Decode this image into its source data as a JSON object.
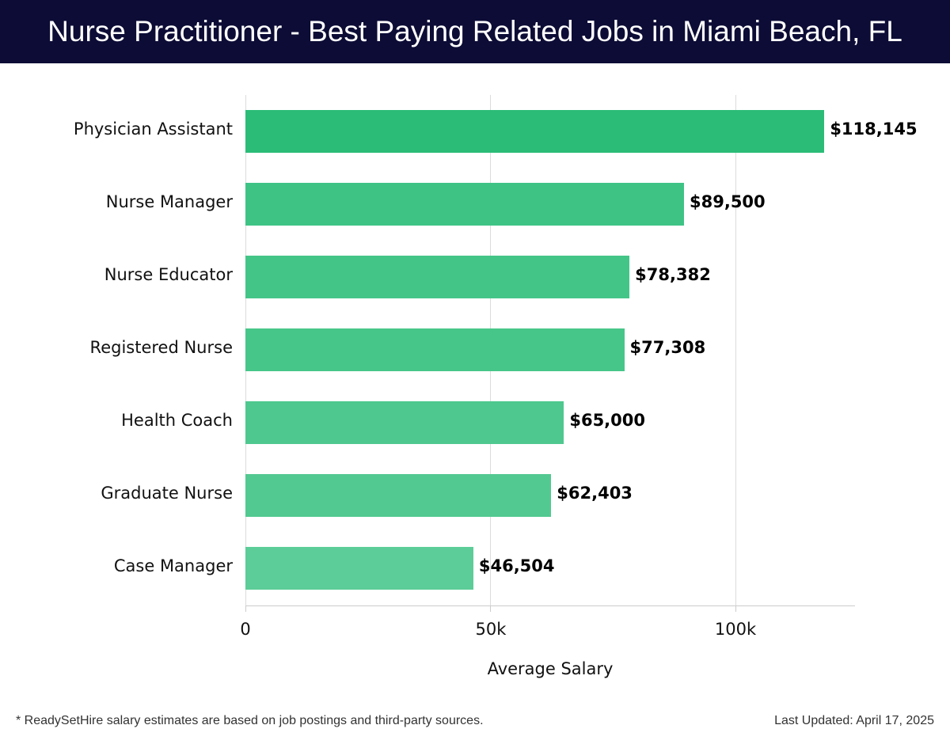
{
  "header": {
    "title": "Nurse Practitioner - Best Paying Related Jobs in Miami Beach, FL"
  },
  "axis": {
    "xlabel": "Average Salary",
    "ticks": [
      {
        "label": "0",
        "value": 0
      },
      {
        "label": "50k",
        "value": 50000
      },
      {
        "label": "100k",
        "value": 100000
      }
    ]
  },
  "bars": [
    {
      "label": "Physician Assistant",
      "value": 118145,
      "display": "$118,145",
      "color": "#2bbc77"
    },
    {
      "label": "Nurse Manager",
      "value": 89500,
      "display": "$89,500",
      "color": "#3ec385"
    },
    {
      "label": "Nurse Educator",
      "value": 78382,
      "display": "$78,382",
      "color": "#44c588"
    },
    {
      "label": "Registered Nurse",
      "value": 77308,
      "display": "$77,308",
      "color": "#47c689"
    },
    {
      "label": "Health Coach",
      "value": 65000,
      "display": "$65,000",
      "color": "#4ec88e"
    },
    {
      "label": "Graduate Nurse",
      "value": 62403,
      "display": "$62,403",
      "color": "#52c990"
    },
    {
      "label": "Case Manager",
      "value": 46504,
      "display": "$46,504",
      "color": "#5ccd98"
    }
  ],
  "footer": {
    "note": "* ReadySetHire salary estimates are based on job postings and third-party sources.",
    "updated": "Last Updated: April 17, 2025"
  },
  "chart_data": {
    "type": "bar",
    "orientation": "horizontal",
    "title": "Nurse Practitioner - Best Paying Related Jobs in Miami Beach, FL",
    "categories": [
      "Physician Assistant",
      "Nurse Manager",
      "Nurse Educator",
      "Registered Nurse",
      "Health Coach",
      "Graduate Nurse",
      "Case Manager"
    ],
    "values": [
      118145,
      89500,
      78382,
      77308,
      65000,
      62403,
      46504
    ],
    "data_labels": [
      "$118,145",
      "$89,500",
      "$78,382",
      "$77,308",
      "$65,000",
      "$62,403",
      "$46,504"
    ],
    "xlabel": "Average Salary",
    "ylabel": "",
    "xticks": [
      "0",
      "50k",
      "100k"
    ],
    "xlim": [
      0,
      124400
    ],
    "grid": true,
    "legend": null,
    "footnote": "* ReadySetHire salary estimates are based on job postings and third-party sources.",
    "annotation": "Last Updated: April 17, 2025"
  }
}
